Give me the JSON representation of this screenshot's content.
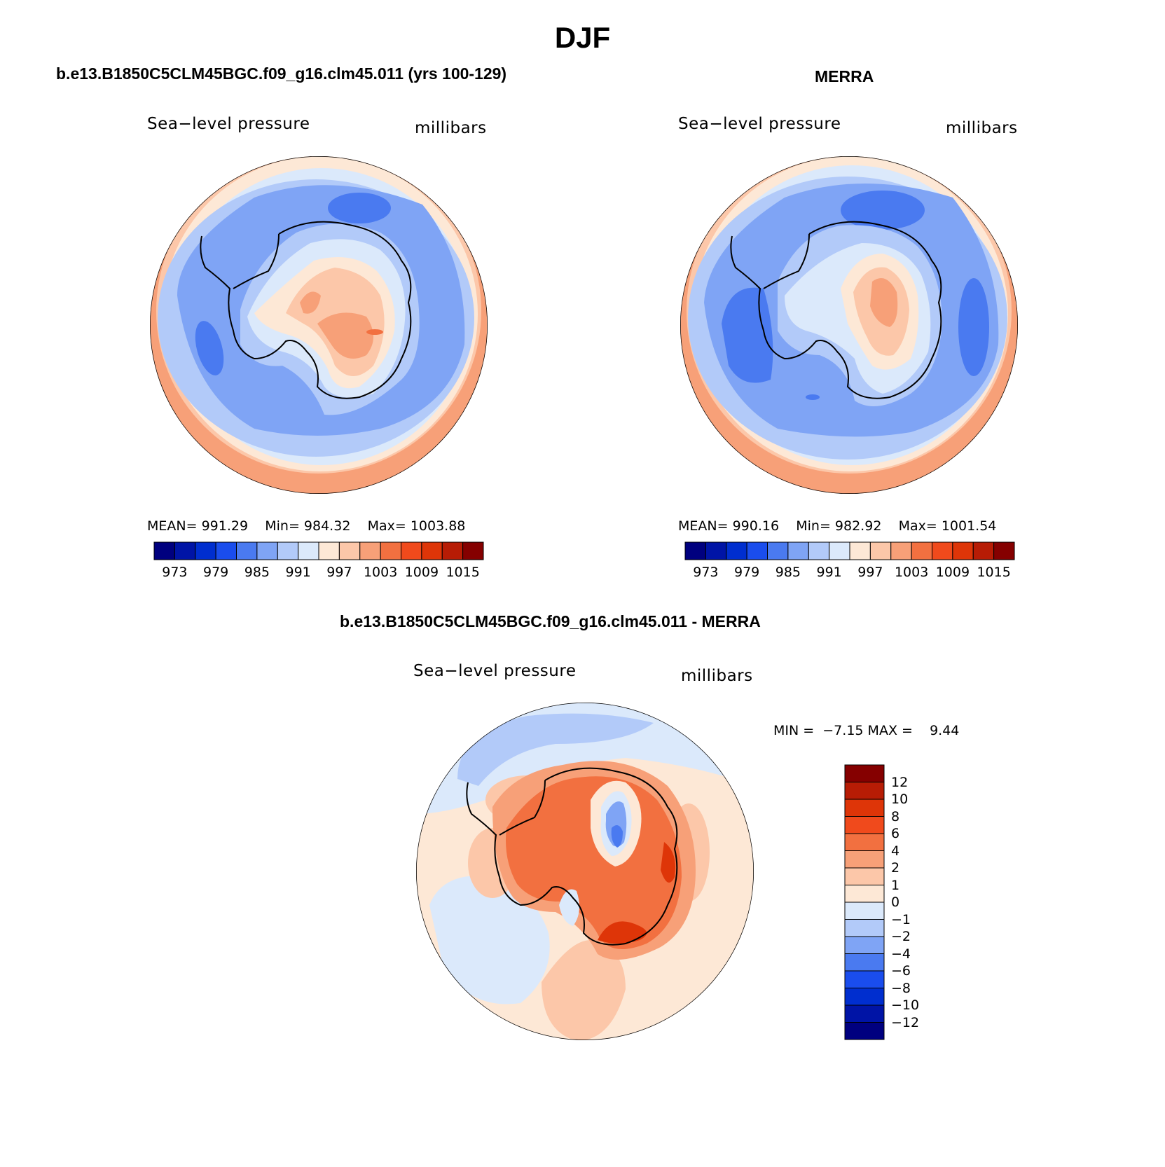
{
  "title": "DJF",
  "panels": [
    {
      "id": "model",
      "title": "b.e13.B1850C5CLM45BGC.f09_g16.clm45.011 (yrs 100-129)",
      "left_label": "Sea−level pressure",
      "right_label": "millibars",
      "stats": {
        "mean_label": "MEAN=",
        "mean": "991.29",
        "min_label": "Min=",
        "min": "984.32",
        "max_label": "Max=",
        "max": "1003.88"
      }
    },
    {
      "id": "obs",
      "title": "MERRA",
      "left_label": "Sea−level pressure",
      "right_label": "millibars",
      "stats": {
        "mean_label": "MEAN=",
        "mean": "990.16",
        "min_label": "Min=",
        "min": "982.92",
        "max_label": "Max=",
        "max": "1001.54"
      }
    },
    {
      "id": "diff",
      "title": "b.e13.B1850C5CLM45BGC.f09_g16.clm45.011 - MERRA",
      "left_label": "Sea−level pressure",
      "right_label": "millibars",
      "stats": {
        "min_label": "MIN =",
        "min": "−7.15",
        "max_label": "MAX =",
        "max": "9.44"
      }
    }
  ],
  "colorbar_abs": {
    "colors": [
      "#00007f",
      "#0014a6",
      "#002ecf",
      "#1a4ded",
      "#4a7af0",
      "#7fa4f5",
      "#b2caf9",
      "#dbe9fb",
      "#fde8d6",
      "#fcc7a9",
      "#f7a078",
      "#f27040",
      "#f04a1c",
      "#de3508",
      "#b71c05",
      "#850000"
    ],
    "ticks": [
      "973",
      "979",
      "985",
      "991",
      "997",
      "1003",
      "1009",
      "1015"
    ]
  },
  "colorbar_diff": {
    "colors": [
      "#00007f",
      "#0014a6",
      "#002ecf",
      "#1a4ded",
      "#4a7af0",
      "#7fa4f5",
      "#b2caf9",
      "#dbe9fb",
      "#fde8d6",
      "#fcc7a9",
      "#f7a078",
      "#f27040",
      "#f04a1c",
      "#de3508",
      "#b71c05",
      "#850000"
    ],
    "ticks": [
      "12",
      "10",
      "8",
      "6",
      "4",
      "2",
      "1",
      "0",
      "−1",
      "−2",
      "−4",
      "−6",
      "−8",
      "−10",
      "−12"
    ]
  }
}
